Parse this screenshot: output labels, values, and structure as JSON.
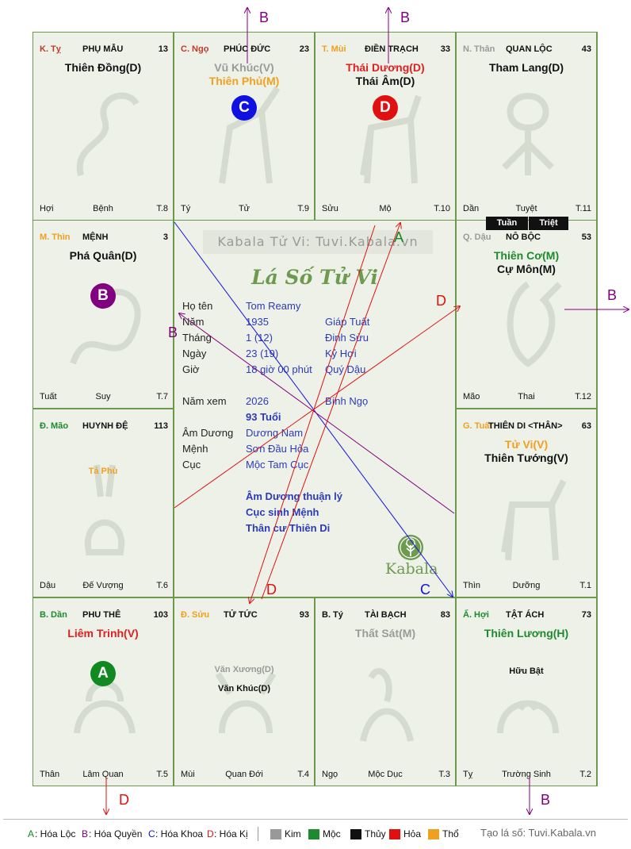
{
  "cells": [
    {
      "can_chi": "K. Tỵ",
      "can_color": "#c0392b",
      "palace": "PHỤ MẪU",
      "age": "13",
      "stars": [
        {
          "text": "Thiên Đồng(D)",
          "color": "#111111"
        }
      ],
      "minor_stars": [],
      "bottom": [
        "Hợi",
        "Bệnh",
        "T.8"
      ],
      "animal": "snake"
    },
    {
      "can_chi": "C. Ngọ",
      "can_color": "#c0392b",
      "palace": "PHÚC ĐỨC",
      "age": "23",
      "stars": [
        {
          "text": "Vũ Khúc(V)",
          "color": "#9a9a9a"
        },
        {
          "text": "Thiên Phủ(M)",
          "color": "#f0a020"
        }
      ],
      "minor_stars": [],
      "bottom": [
        "Tý",
        "Tử",
        "T.9"
      ],
      "animal": "horse"
    },
    {
      "can_chi": "T. Mùi",
      "can_color": "#f0a020",
      "palace": "ĐIỀN TRẠCH",
      "age": "33",
      "stars": [
        {
          "text": "Thái Dương(D)",
          "color": "#e02020"
        },
        {
          "text": "Thái Âm(D)",
          "color": "#111111"
        }
      ],
      "minor_stars": [],
      "bottom": [
        "Sửu",
        "Mộ",
        "T.10"
      ],
      "animal": "goat"
    },
    {
      "can_chi": "N. Thân",
      "can_color": "#9a9a9a",
      "palace": "QUAN LỘC",
      "age": "43",
      "stars": [
        {
          "text": "Tham Lang(D)",
          "color": "#111111"
        }
      ],
      "minor_stars": [],
      "bottom": [
        "Dần",
        "Tuyệt",
        "T.11"
      ],
      "animal": "monkey"
    },
    {
      "can_chi": "M. Thìn",
      "can_color": "#f0a020",
      "palace": "MỆNH",
      "age": "3",
      "stars": [
        {
          "text": "Phá Quân(D)",
          "color": "#111111"
        }
      ],
      "minor_stars": [],
      "bottom": [
        "Tuất",
        "Suy",
        "T.7"
      ],
      "animal": "dragon"
    },
    {
      "can_chi": "Q. Dậu",
      "can_color": "#9a9a9a",
      "palace": "NÔ BỘC",
      "age": "53",
      "stars": [
        {
          "text": "Thiên Cơ(M)",
          "color": "#1e8a2e"
        },
        {
          "text": "Cự Môn(M)",
          "color": "#111111"
        }
      ],
      "minor_stars": [],
      "bottom": [
        "Mão",
        "Thai",
        "T.12"
      ],
      "animal": "rooster"
    },
    {
      "can_chi": "Đ. Mão",
      "can_color": "#1e8a2e",
      "palace": "HUYNH ĐỆ",
      "age": "113",
      "stars": [],
      "minor_stars": [
        {
          "text": "Tả Phù",
          "color": "#f0a020"
        }
      ],
      "bottom": [
        "Dậu",
        "Đế Vượng",
        "T.6"
      ],
      "animal": "rabbit"
    },
    {
      "can_chi": "G. Tuất",
      "can_color": "#f0a020",
      "palace": "THIÊN DI <THÂN>",
      "age": "63",
      "stars": [
        {
          "text": "Tử Vi(V)",
          "color": "#f0a020"
        },
        {
          "text": "Thiên Tướng(V)",
          "color": "#111111"
        }
      ],
      "minor_stars": [],
      "bottom": [
        "Thìn",
        "Dưỡng",
        "T.1"
      ],
      "animal": "dog"
    },
    {
      "can_chi": "B. Dần",
      "can_color": "#1e8a2e",
      "palace": "PHU THÊ",
      "age": "103",
      "stars": [
        {
          "text": "Liêm Trinh(V)",
          "color": "#e02020"
        }
      ],
      "minor_stars": [],
      "bottom": [
        "Thân",
        "Lâm Quan",
        "T.5"
      ],
      "animal": "tiger"
    },
    {
      "can_chi": "Đ. Sửu",
      "can_color": "#f0a020",
      "palace": "TỬ TỨC",
      "age": "93",
      "stars": [],
      "minor_stars": [
        {
          "text": "Văn Xương(D)",
          "color": "#9a9a9a"
        },
        {
          "text": "Văn Khúc(D)",
          "color": "#111111"
        }
      ],
      "bottom": [
        "Mùi",
        "Quan Đới",
        "T.4"
      ],
      "animal": "ox"
    },
    {
      "can_chi": "B. Tý",
      "can_color": "#111111",
      "palace": "TÀI BẠCH",
      "age": "83",
      "stars": [
        {
          "text": "Thất Sát(M)",
          "color": "#9a9a9a"
        }
      ],
      "minor_stars": [],
      "bottom": [
        "Ngọ",
        "Mộc Dục",
        "T.3"
      ],
      "animal": "rat"
    },
    {
      "can_chi": "Ấ. Hợi",
      "can_color": "#1e8a2e",
      "palace": "TẬT ÁCH",
      "age": "73",
      "stars": [
        {
          "text": "Thiên Lương(H)",
          "color": "#1e8a2e"
        }
      ],
      "minor_stars": [
        {
          "text": "Hữu Bật",
          "color": "#111111"
        }
      ],
      "bottom": [
        "Tỵ",
        "Trường Sinh",
        "T.2"
      ],
      "animal": "pig"
    }
  ],
  "markers": [
    {
      "letter": "C",
      "color": "#1010e0",
      "cell": 1
    },
    {
      "letter": "D",
      "color": "#e01010",
      "cell": 2
    },
    {
      "letter": "B",
      "color": "#800080",
      "cell": 4
    },
    {
      "letter": "A",
      "color": "#108a20",
      "cell": 8
    }
  ],
  "tuan": "Tuần",
  "triet": "Triệt",
  "center": {
    "watermark": "Kabala Tử Vi: Tuvi.Kabala.vn",
    "title": "Lá Số Tử Vi",
    "rows": [
      {
        "label": "Họ tên",
        "v1": "Tom Reamy",
        "v2": ""
      },
      {
        "label": "Năm",
        "v1": "1935",
        "v2": "Giáp Tuất"
      },
      {
        "label": "Tháng",
        "v1": "1  (12)",
        "v2": "Đinh Sửu"
      },
      {
        "label": "Ngày",
        "v1": "23  (19)",
        "v2": "Kỷ Hợi"
      },
      {
        "label": "Giờ",
        "v1": "18 giờ 00 phút",
        "v2": "Quý Dậu"
      },
      {
        "label": "Năm xem",
        "v1": "2026",
        "v2": "Bính Ngọ"
      },
      {
        "label": "",
        "v1": "93 Tuổi",
        "v2": ""
      },
      {
        "label": "Âm Dương",
        "v1": "Dương Nam",
        "v2": ""
      },
      {
        "label": "Mệnh",
        "v1": "Sơn Đầu Hỏa",
        "v2": ""
      },
      {
        "label": "Cục",
        "v1": "Mộc Tam Cục",
        "v2": ""
      }
    ],
    "notes": [
      "Âm Dương thuận lý",
      "Cục sinh Mệnh",
      "Thân cư Thiên Di"
    ],
    "logo_text": "Kabala"
  },
  "arrows": [
    {
      "label": "A",
      "color": "#108a20"
    },
    {
      "label": "B",
      "color": "#800080"
    },
    {
      "label": "C",
      "color": "#1010e0"
    },
    {
      "label": "D",
      "color": "#e01010"
    }
  ],
  "legend": {
    "items": [
      {
        "key": "A",
        "text": ": Hóa Lộc",
        "color": "#108a20"
      },
      {
        "key": "B",
        "text": ": Hóa Quyền",
        "color": "#800080"
      },
      {
        "key": "C",
        "text": ": Hóa Khoa",
        "color": "#1010e0"
      },
      {
        "key": "D",
        "text": ": Hóa Kị",
        "color": "#e01010"
      }
    ],
    "elements": [
      {
        "name": "Kim",
        "color": "#999999"
      },
      {
        "name": "Mộc",
        "color": "#1e8a2e"
      },
      {
        "name": "Thủy",
        "color": "#111111"
      },
      {
        "name": "Hỏa",
        "color": "#e01010"
      },
      {
        "name": "Thổ",
        "color": "#f0a020"
      }
    ],
    "credit": "Tạo lá số: Tuvi.Kabala.vn"
  }
}
